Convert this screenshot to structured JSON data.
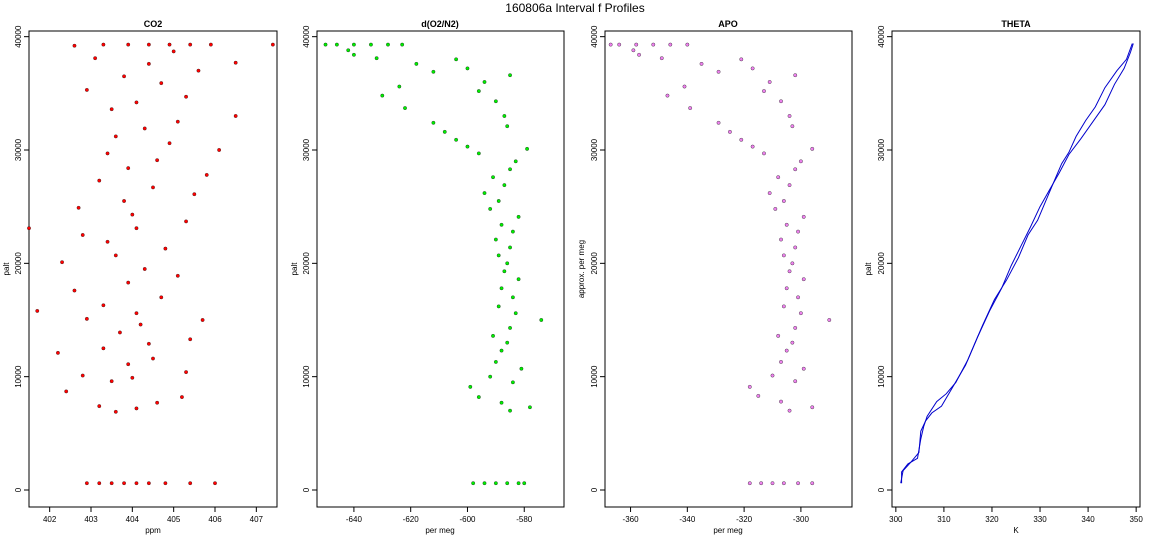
{
  "figure_title": "160806a   Interval f Profiles",
  "chart_data": [
    {
      "type": "scatter",
      "title": "CO2",
      "xlabel": "ppm",
      "ylabel": "palt",
      "xlim": [
        401.5,
        407.5
      ],
      "ylim": [
        -1500,
        40500
      ],
      "xticks": [
        402,
        403,
        404,
        405,
        406,
        407
      ],
      "yticks": [
        0,
        10000,
        20000,
        30000,
        40000
      ],
      "grid": false,
      "point_color": "#ff0000",
      "series": [
        {
          "points": [
            [
              402.9,
              600
            ],
            [
              403.2,
              600
            ],
            [
              403.5,
              600
            ],
            [
              403.8,
              600
            ],
            [
              404.1,
              600
            ],
            [
              404.4,
              600
            ],
            [
              404.8,
              600
            ],
            [
              405.4,
              600
            ],
            [
              406.0,
              600
            ],
            [
              403.6,
              6900
            ],
            [
              404.1,
              7200
            ],
            [
              403.2,
              7400
            ],
            [
              404.6,
              7700
            ],
            [
              405.2,
              8200
            ],
            [
              402.4,
              8700
            ],
            [
              403.5,
              9600
            ],
            [
              404.0,
              9900
            ],
            [
              402.8,
              10100
            ],
            [
              405.3,
              10400
            ],
            [
              403.9,
              11100
            ],
            [
              404.5,
              11600
            ],
            [
              402.2,
              12100
            ],
            [
              403.3,
              12500
            ],
            [
              404.4,
              12900
            ],
            [
              405.4,
              13300
            ],
            [
              403.7,
              13900
            ],
            [
              404.2,
              14600
            ],
            [
              402.9,
              15100
            ],
            [
              405.7,
              15000
            ],
            [
              404.1,
              15600
            ],
            [
              401.7,
              15800
            ],
            [
              403.3,
              16300
            ],
            [
              404.7,
              17000
            ],
            [
              402.6,
              17600
            ],
            [
              403.9,
              18300
            ],
            [
              405.1,
              18900
            ],
            [
              404.3,
              19500
            ],
            [
              402.3,
              20100
            ],
            [
              403.6,
              20700
            ],
            [
              404.8,
              21300
            ],
            [
              403.4,
              21900
            ],
            [
              402.8,
              22500
            ],
            [
              404.1,
              23100
            ],
            [
              401.5,
              23100
            ],
            [
              405.3,
              23700
            ],
            [
              404.0,
              24300
            ],
            [
              402.7,
              24900
            ],
            [
              403.8,
              25500
            ],
            [
              405.5,
              26100
            ],
            [
              404.5,
              26700
            ],
            [
              403.2,
              27300
            ],
            [
              405.8,
              27800
            ],
            [
              403.9,
              28400
            ],
            [
              404.6,
              29100
            ],
            [
              403.4,
              29700
            ],
            [
              406.1,
              30000
            ],
            [
              404.9,
              30600
            ],
            [
              403.6,
              31200
            ],
            [
              404.3,
              31900
            ],
            [
              405.1,
              32500
            ],
            [
              406.5,
              33000
            ],
            [
              403.5,
              33600
            ],
            [
              404.1,
              34200
            ],
            [
              405.3,
              34700
            ],
            [
              402.9,
              35300
            ],
            [
              404.7,
              35900
            ],
            [
              403.8,
              36500
            ],
            [
              405.6,
              37000
            ],
            [
              404.4,
              37600
            ],
            [
              403.1,
              38100
            ],
            [
              405.0,
              38700
            ],
            [
              406.5,
              37700
            ],
            [
              402.6,
              39200
            ],
            [
              403.3,
              39300
            ],
            [
              403.9,
              39300
            ],
            [
              404.4,
              39300
            ],
            [
              404.9,
              39300
            ],
            [
              405.4,
              39300
            ],
            [
              405.9,
              39300
            ],
            [
              407.4,
              39300
            ]
          ]
        }
      ]
    },
    {
      "type": "scatter",
      "title": "d(O2/N2)",
      "xlabel": "per meg",
      "ylabel": "palt",
      "xlim": [
        -653,
        -566
      ],
      "ylim": [
        -1500,
        40500
      ],
      "xticks": [
        -640,
        -620,
        -600,
        -580
      ],
      "yticks": [
        0,
        10000,
        20000,
        30000,
        40000
      ],
      "grid": false,
      "point_color": "#00ee00",
      "series": [
        {
          "points": [
            [
              -598,
              600
            ],
            [
              -594,
              600
            ],
            [
              -590,
              600
            ],
            [
              -586,
              600
            ],
            [
              -582,
              600
            ],
            [
              -580,
              600
            ],
            [
              -585,
              7000
            ],
            [
              -578,
              7300
            ],
            [
              -588,
              7700
            ],
            [
              -596,
              8200
            ],
            [
              -599,
              9100
            ],
            [
              -584,
              9500
            ],
            [
              -592,
              10000
            ],
            [
              -581,
              10700
            ],
            [
              -590,
              11300
            ],
            [
              -588,
              12300
            ],
            [
              -586,
              13000
            ],
            [
              -591,
              13600
            ],
            [
              -585,
              14300
            ],
            [
              -574,
              15000
            ],
            [
              -583,
              15600
            ],
            [
              -589,
              16200
            ],
            [
              -584,
              17000
            ],
            [
              -588,
              17800
            ],
            [
              -582,
              18600
            ],
            [
              -587,
              19300
            ],
            [
              -586,
              20000
            ],
            [
              -589,
              20700
            ],
            [
              -585,
              21400
            ],
            [
              -590,
              22100
            ],
            [
              -584,
              22800
            ],
            [
              -588,
              23400
            ],
            [
              -582,
              24100
            ],
            [
              -592,
              24800
            ],
            [
              -589,
              25500
            ],
            [
              -594,
              26200
            ],
            [
              -587,
              26900
            ],
            [
              -591,
              27600
            ],
            [
              -585,
              28300
            ],
            [
              -583,
              29000
            ],
            [
              -596,
              29700
            ],
            [
              -600,
              30300
            ],
            [
              -579,
              30100
            ],
            [
              -604,
              30900
            ],
            [
              -608,
              31600
            ],
            [
              -586,
              32100
            ],
            [
              -612,
              32400
            ],
            [
              -587,
              33000
            ],
            [
              -622,
              33700
            ],
            [
              -590,
              34300
            ],
            [
              -630,
              34800
            ],
            [
              -596,
              35200
            ],
            [
              -624,
              35600
            ],
            [
              -594,
              36000
            ],
            [
              -585,
              36600
            ],
            [
              -612,
              36900
            ],
            [
              -600,
              37200
            ],
            [
              -618,
              37600
            ],
            [
              -604,
              38000
            ],
            [
              -632,
              38100
            ],
            [
              -640,
              38400
            ],
            [
              -642,
              38800
            ],
            [
              -646,
              39300
            ],
            [
              -640,
              39300
            ],
            [
              -634,
              39300
            ],
            [
              -628,
              39300
            ],
            [
              -623,
              39300
            ],
            [
              -650,
              39300
            ]
          ]
        }
      ]
    },
    {
      "type": "scatter",
      "title": "APO",
      "xlabel": "per meg",
      "ylabel": "approx. per meg",
      "xlim": [
        -369,
        -282
      ],
      "ylim": [
        -1500,
        40500
      ],
      "xticks": [
        -360,
        -340,
        -320,
        -300
      ],
      "yticks": [
        0,
        10000,
        20000,
        30000,
        40000
      ],
      "grid": false,
      "point_color": "#ee82ee",
      "series": [
        {
          "points": [
            [
              -318,
              600
            ],
            [
              -314,
              600
            ],
            [
              -310,
              600
            ],
            [
              -306,
              600
            ],
            [
              -301,
              600
            ],
            [
              -296,
              600
            ],
            [
              -304,
              7000
            ],
            [
              -296,
              7300
            ],
            [
              -307,
              7800
            ],
            [
              -315,
              8300
            ],
            [
              -318,
              9100
            ],
            [
              -302,
              9600
            ],
            [
              -310,
              10100
            ],
            [
              -299,
              10700
            ],
            [
              -307,
              11300
            ],
            [
              -305,
              12300
            ],
            [
              -303,
              13000
            ],
            [
              -308,
              13600
            ],
            [
              -302,
              14300
            ],
            [
              -290,
              15000
            ],
            [
              -300,
              15600
            ],
            [
              -306,
              16200
            ],
            [
              -301,
              17000
            ],
            [
              -305,
              17800
            ],
            [
              -299,
              18600
            ],
            [
              -304,
              19300
            ],
            [
              -303,
              20000
            ],
            [
              -306,
              20700
            ],
            [
              -302,
              21400
            ],
            [
              -307,
              22100
            ],
            [
              -301,
              22800
            ],
            [
              -305,
              23400
            ],
            [
              -299,
              24100
            ],
            [
              -309,
              24800
            ],
            [
              -306,
              25500
            ],
            [
              -311,
              26200
            ],
            [
              -304,
              26900
            ],
            [
              -308,
              27600
            ],
            [
              -302,
              28300
            ],
            [
              -300,
              29000
            ],
            [
              -313,
              29700
            ],
            [
              -317,
              30300
            ],
            [
              -296,
              30100
            ],
            [
              -321,
              30900
            ],
            [
              -325,
              31600
            ],
            [
              -303,
              32100
            ],
            [
              -329,
              32400
            ],
            [
              -304,
              33000
            ],
            [
              -339,
              33700
            ],
            [
              -307,
              34300
            ],
            [
              -347,
              34800
            ],
            [
              -313,
              35200
            ],
            [
              -341,
              35600
            ],
            [
              -311,
              36000
            ],
            [
              -302,
              36600
            ],
            [
              -329,
              36900
            ],
            [
              -317,
              37200
            ],
            [
              -335,
              37600
            ],
            [
              -321,
              38000
            ],
            [
              -349,
              38100
            ],
            [
              -357,
              38400
            ],
            [
              -359,
              38800
            ],
            [
              -364,
              39300
            ],
            [
              -358,
              39300
            ],
            [
              -352,
              39300
            ],
            [
              -346,
              39300
            ],
            [
              -340,
              39300
            ],
            [
              -367,
              39300
            ]
          ]
        }
      ]
    },
    {
      "type": "line",
      "title": "THETA",
      "xlabel": "K",
      "ylabel": "palt",
      "xlim": [
        299.2,
        350.8
      ],
      "ylim": [
        -1500,
        40500
      ],
      "xticks": [
        300,
        310,
        320,
        330,
        340,
        350
      ],
      "yticks": [
        0,
        10000,
        20000,
        30000,
        40000
      ],
      "grid": false,
      "line_color": "#0000cc",
      "series": [
        {
          "x": [
            301.2,
            301.2,
            302.5,
            304.5,
            305.2,
            305.8,
            306.5,
            308.5,
            310.5,
            312.5,
            315.0,
            318.0,
            320.5,
            323.0,
            325.5,
            327.5,
            329.5,
            331.5,
            333.0,
            334.5,
            336.0,
            337.5,
            339.5,
            341.5,
            343.5,
            346.0,
            348.0,
            349.2
          ],
          "y": [
            600,
            1600,
            2300,
            2800,
            4500,
            5600,
            6500,
            7800,
            8500,
            9500,
            11500,
            14500,
            16800,
            18500,
            20500,
            22500,
            23800,
            25800,
            27300,
            28800,
            29800,
            31200,
            32600,
            33800,
            35500,
            37000,
            38000,
            39400
          ]
        },
        {
          "x": [
            301.0,
            301.5,
            303.0,
            304.8,
            305.2,
            306.2,
            307.5,
            309.5,
            312.0,
            314.5,
            317.0,
            319.5,
            322.0,
            324.0,
            326.0,
            328.0,
            330.0,
            332.0,
            334.0,
            336.0,
            338.5,
            341.0,
            343.5,
            345.5,
            347.5,
            348.8,
            349.4
          ],
          "y": [
            600,
            1700,
            2400,
            3300,
            5200,
            6100,
            6800,
            7400,
            9200,
            11000,
            13500,
            15800,
            17800,
            19800,
            21500,
            23200,
            25000,
            26500,
            28000,
            29600,
            31000,
            32500,
            34000,
            35800,
            37200,
            38600,
            39400
          ]
        }
      ]
    }
  ]
}
